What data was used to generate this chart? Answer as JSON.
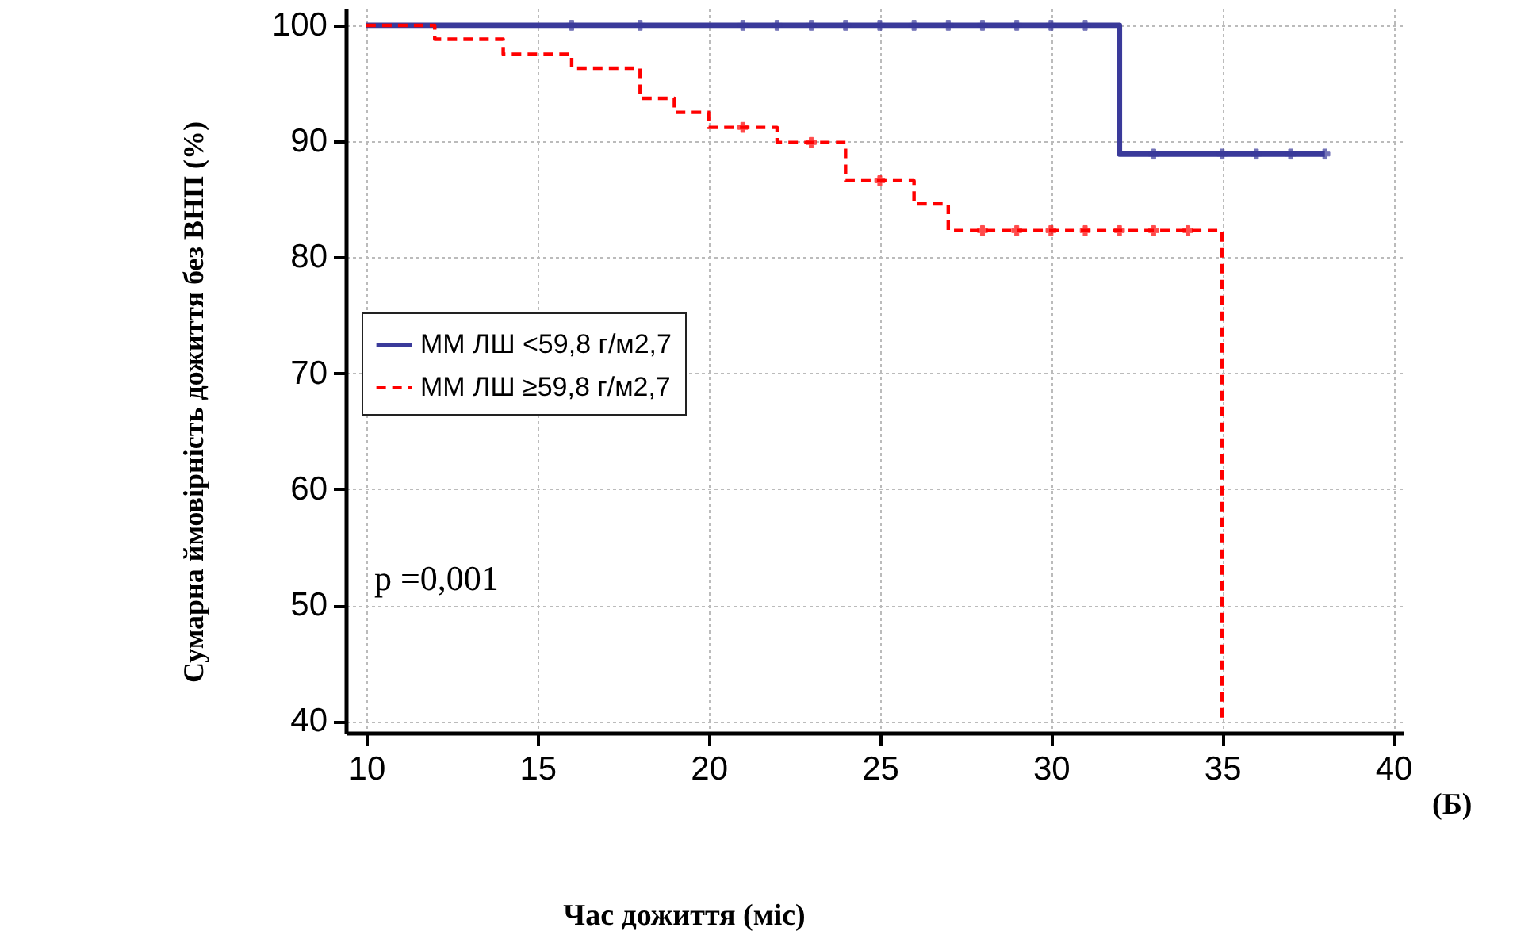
{
  "chart_data": {
    "type": "step",
    "xlabel": "Час дожиття (міс)",
    "ylabel": "Сумарна ймовірність дожиття без ВНП (%)",
    "annotations": [
      "p =0,001",
      "(Б)"
    ],
    "xlim": [
      9.4,
      40.3
    ],
    "xticks": [
      10,
      15,
      20,
      25,
      30,
      35,
      40
    ],
    "ylim": [
      39,
      101.5
    ],
    "yticks": [
      40,
      50,
      60,
      70,
      80,
      90,
      100
    ],
    "grid": true,
    "legend": "left",
    "series": [
      {
        "name": "ММ ЛШ <59,8 г/м2,7",
        "color": "#3a3a9a",
        "line_style": "solid",
        "x": [
          10,
          32,
          38
        ],
        "values": [
          100,
          88.9,
          88.9
        ]
      },
      {
        "name": "ММ ЛШ ≥59,8 г/м2,7",
        "color": "#ff0000",
        "line_style": "dashed",
        "x": [
          10,
          12,
          14,
          16,
          18,
          19,
          20,
          22,
          24,
          26,
          27,
          35
        ],
        "values": [
          100,
          98.8,
          97.5,
          96.3,
          93.7,
          92.5,
          91.2,
          89.9,
          86.6,
          84.6,
          82.3,
          40
        ]
      },
      {
        "type": "scatter",
        "marker": "cross",
        "color": "#3a3a9a",
        "x": [
          16,
          18,
          21,
          22,
          23,
          24,
          25,
          26,
          27,
          28,
          29,
          30,
          31,
          33,
          35,
          36,
          37,
          38
        ],
        "values": [
          100,
          100,
          100,
          100,
          100,
          100,
          100,
          100,
          100,
          100,
          100,
          100,
          100,
          88.9,
          88.9,
          88.9,
          88.9,
          88.9
        ]
      },
      {
        "type": "scatter",
        "marker": "cross",
        "color": "#ff0000",
        "x": [
          21,
          23,
          25,
          28,
          29,
          30,
          31,
          32,
          33,
          34
        ],
        "values": [
          91.2,
          89.9,
          86.6,
          82.3,
          82.3,
          82.3,
          82.3,
          82.3,
          82.3,
          82.3
        ]
      }
    ]
  }
}
